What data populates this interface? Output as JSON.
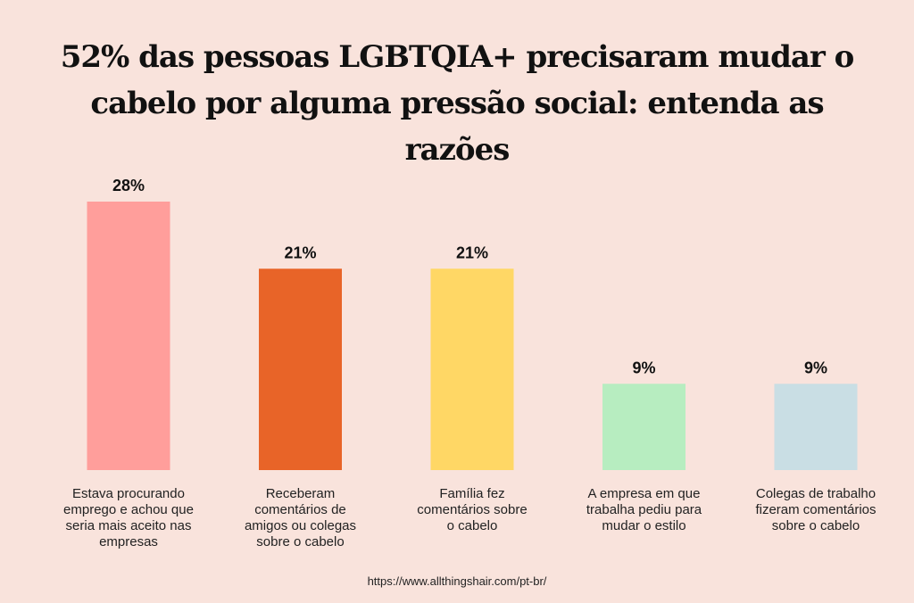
{
  "title": {
    "line1": "52% das pessoas LGBTQIA+ precisaram mudar o",
    "line2": "cabelo por alguma pressão social: entenda as razões"
  },
  "chart_data": {
    "type": "bar",
    "title": "52% das pessoas LGBTQIA+ precisaram mudar o cabelo por alguma pressão social: entenda as razões",
    "categories": [
      "Estava procurando emprego e achou que seria mais aceito nas empresas",
      "Receberam comentários de amigos ou colegas sobre o cabelo",
      "Família fez comentários sobre o cabelo",
      "A empresa em que trabalha pediu para mudar o estilo",
      "Colegas de trabalho fizeram comentários sobre o cabelo"
    ],
    "category_lines": [
      [
        "Estava procurando",
        "emprego e achou que",
        "seria mais aceito nas",
        "empresas"
      ],
      [
        "Receberam",
        "comentários de",
        "amigos ou colegas",
        "sobre o cabelo"
      ],
      [
        "Família fez",
        "comentários sobre",
        "o cabelo"
      ],
      [
        "A empresa em que",
        "trabalha pediu para",
        "mudar o estilo"
      ],
      [
        "Colegas de trabalho",
        "fizeram comentários",
        "sobre o cabelo"
      ]
    ],
    "values": [
      28,
      21,
      21,
      9,
      9
    ],
    "data_labels": [
      "28%",
      "21%",
      "21%",
      "9%",
      "9%"
    ],
    "colors": [
      "#ff9e9b",
      "#e86428",
      "#ffd765",
      "#b7edc0",
      "#c9dee4"
    ],
    "xlabel": "",
    "ylabel": "",
    "ylim": [
      0,
      28
    ],
    "grid": false,
    "legend": "none"
  },
  "source": "https://www.allthingshair.com/pt-br/"
}
